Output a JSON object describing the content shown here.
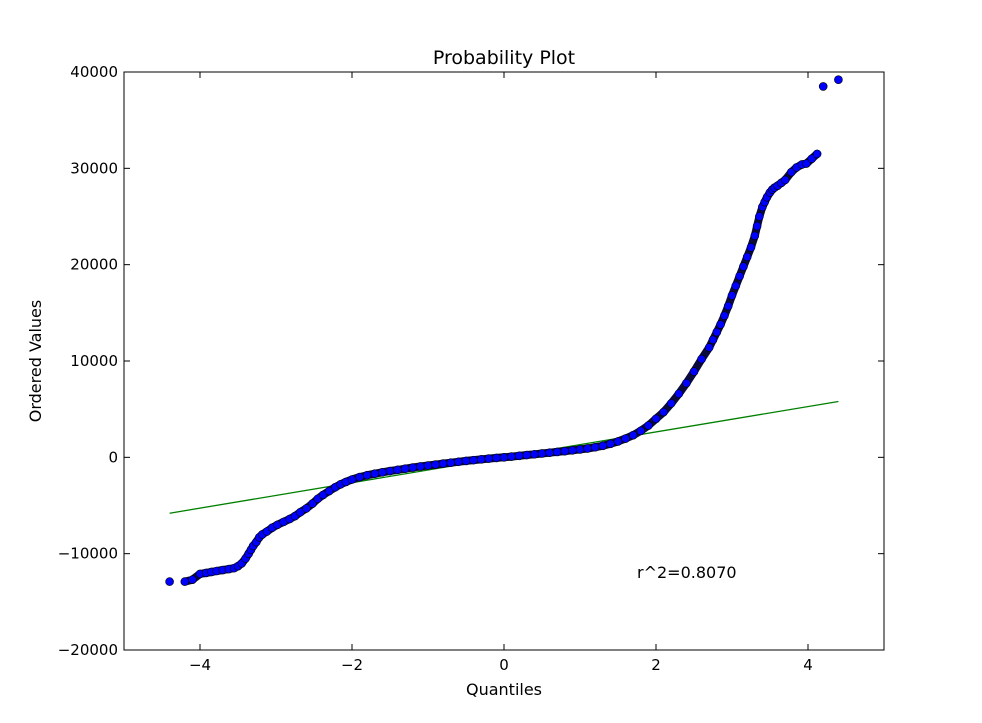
{
  "chart_data": {
    "type": "scatter",
    "title": "Probability Plot",
    "xlabel": "Quantiles",
    "ylabel": "Ordered Values",
    "xlim": [
      -5,
      5
    ],
    "ylim": [
      -20000,
      40000
    ],
    "xticks": [
      -4,
      -2,
      0,
      2,
      4
    ],
    "yticks": [
      -20000,
      -10000,
      0,
      10000,
      20000,
      30000,
      40000
    ],
    "xtick_labels": [
      "−4",
      "−2",
      "0",
      "2",
      "4"
    ],
    "ytick_labels": [
      "−20000",
      "−10000",
      "0",
      "10000",
      "20000",
      "30000",
      "40000"
    ],
    "grid": false,
    "annotation": {
      "text": "r^2=0.8070",
      "x": 1.75,
      "y": -12000
    },
    "series": [
      {
        "kind": "points",
        "color": "#0000ff",
        "edge_color": "#000000",
        "x": [
          -4.4,
          -4.2,
          -4.1,
          -4.0,
          -3.92,
          -3.85,
          -3.78,
          -3.7,
          -3.62,
          -3.55,
          -3.5,
          -3.45,
          -3.4,
          -3.36,
          -3.33,
          -3.3,
          -3.26,
          -3.22,
          -3.18,
          -3.12,
          -3.05,
          -2.98,
          -2.9,
          -2.82,
          -2.75,
          -2.68,
          -2.6,
          -2.52,
          -2.45,
          -2.38,
          -2.3,
          -2.22,
          -2.15,
          -2.08,
          -2.0,
          -1.9,
          -1.8,
          -1.7,
          -1.6,
          -1.5,
          -1.4,
          -1.3,
          -1.2,
          -1.1,
          -1.0,
          -0.9,
          -0.8,
          -0.7,
          -0.6,
          -0.5,
          -0.4,
          -0.3,
          -0.2,
          -0.1,
          0.0,
          0.1,
          0.2,
          0.3,
          0.4,
          0.5,
          0.6,
          0.7,
          0.8,
          0.9,
          1.0,
          1.1,
          1.2,
          1.3,
          1.4,
          1.5,
          1.6,
          1.7,
          1.8,
          1.9,
          2.0,
          2.1,
          2.2,
          2.3,
          2.4,
          2.5,
          2.6,
          2.7,
          2.75,
          2.8,
          2.85,
          2.9,
          2.95,
          3.0,
          3.05,
          3.1,
          3.15,
          3.2,
          3.25,
          3.3,
          3.33,
          3.36,
          3.4,
          3.43,
          3.46,
          3.5,
          3.53,
          3.56,
          3.6,
          3.65,
          3.7,
          3.78,
          3.85,
          3.92,
          3.98,
          4.05,
          4.12,
          4.2,
          4.4
        ],
        "y": [
          -12900,
          -12900,
          -12700,
          -12100,
          -12000,
          -11900,
          -11800,
          -11700,
          -11600,
          -11500,
          -11300,
          -11000,
          -10500,
          -10000,
          -9600,
          -9200,
          -8800,
          -8300,
          -8000,
          -7700,
          -7300,
          -7000,
          -6700,
          -6400,
          -6100,
          -5700,
          -5300,
          -4800,
          -4300,
          -3900,
          -3500,
          -3100,
          -2800,
          -2550,
          -2300,
          -2050,
          -1850,
          -1700,
          -1550,
          -1420,
          -1300,
          -1180,
          -1060,
          -950,
          -850,
          -750,
          -650,
          -560,
          -460,
          -370,
          -290,
          -210,
          -130,
          -60,
          0,
          80,
          160,
          240,
          320,
          400,
          480,
          560,
          640,
          730,
          820,
          920,
          1050,
          1200,
          1400,
          1650,
          1950,
          2300,
          2750,
          3300,
          4000,
          4700,
          5600,
          6600,
          7700,
          8900,
          10200,
          11400,
          12200,
          13000,
          13800,
          14700,
          15700,
          16800,
          17800,
          18800,
          19800,
          20800,
          21800,
          23000,
          24000,
          25000,
          26000,
          26500,
          27000,
          27500,
          27800,
          28000,
          28200,
          28500,
          28800,
          29600,
          30100,
          30400,
          30500,
          31000,
          31500,
          38500,
          39200
        ]
      },
      {
        "kind": "fit-line",
        "color": "#008000",
        "x": [
          -4.4,
          4.4
        ],
        "y": [
          -5800,
          5800
        ]
      }
    ]
  }
}
